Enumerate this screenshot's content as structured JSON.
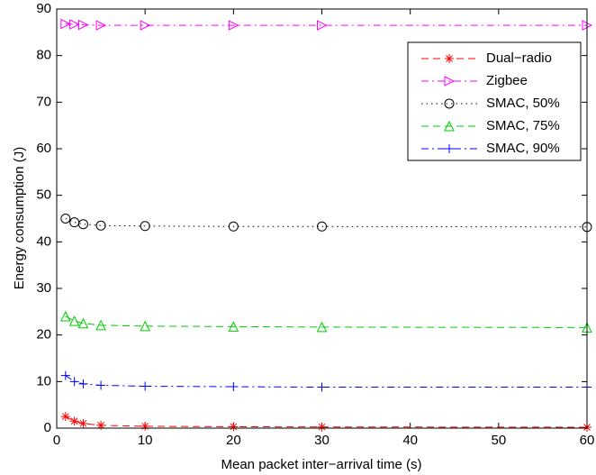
{
  "chart_data": {
    "type": "line",
    "x_label": "Mean packet inter−arrival time (s)",
    "y_label": "Energy consumption (J)",
    "x": [
      1,
      2,
      3,
      5,
      10,
      20,
      30,
      60
    ],
    "xlim": [
      0,
      60
    ],
    "xticks": [
      0,
      10,
      20,
      30,
      40,
      50,
      60
    ],
    "ylim": [
      0,
      90
    ],
    "yticks": [
      0,
      10,
      20,
      30,
      40,
      50,
      60,
      70,
      80,
      90
    ],
    "legend": "upper right",
    "series": [
      {
        "name": "Dual−radio",
        "color": "#ff0000",
        "marker": "star",
        "line_style": "dashed",
        "values": [
          2.5,
          1.5,
          1.0,
          0.6,
          0.4,
          0.3,
          0.25,
          0.2
        ]
      },
      {
        "name": "Zigbee",
        "color": "#ff00ff",
        "marker": "triangle-right",
        "line_style": "dashdot",
        "values": [
          86.8,
          86.7,
          86.6,
          86.5,
          86.5,
          86.5,
          86.5,
          86.5
        ]
      },
      {
        "name": "SMAC, 50%",
        "color": "#000000",
        "marker": "circle",
        "line_style": "dotted",
        "values": [
          45,
          44.2,
          43.8,
          43.5,
          43.4,
          43.3,
          43.3,
          43.2
        ]
      },
      {
        "name": "SMAC, 75%",
        "color": "#00cc00",
        "marker": "triangle-up",
        "line_style": "dashed",
        "values": [
          24,
          23,
          22.5,
          22.1,
          21.9,
          21.8,
          21.7,
          21.6
        ]
      },
      {
        "name": "SMAC, 90%",
        "color": "#0000ff",
        "marker": "plus",
        "line_style": "dashdot",
        "values": [
          11.3,
          10,
          9.5,
          9.2,
          9.0,
          8.9,
          8.8,
          8.8
        ]
      }
    ]
  }
}
